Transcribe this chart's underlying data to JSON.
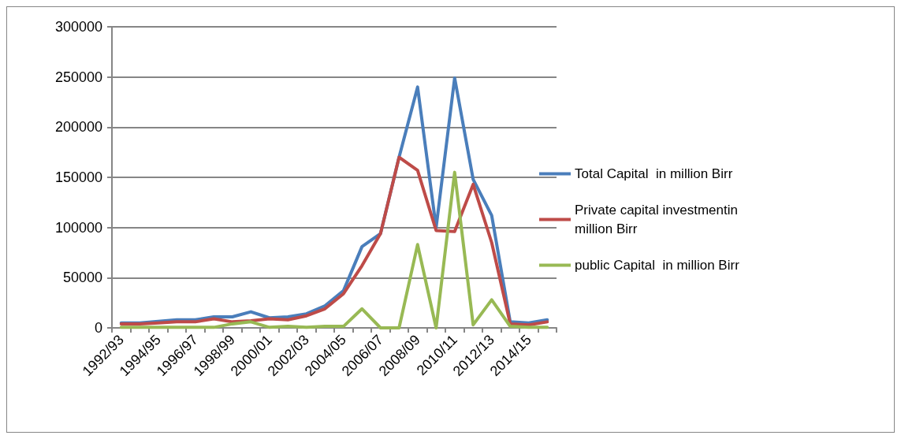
{
  "chart_data": {
    "type": "line",
    "categories": [
      "1992/93",
      null,
      "1994/95",
      null,
      "1996/97",
      null,
      "1998/99",
      null,
      "2000/01",
      null,
      "2002/03",
      null,
      "2004/05",
      null,
      "2006/07",
      null,
      "2008/09",
      null,
      "2010/11",
      null,
      "2012/13",
      null,
      "2014/15",
      null
    ],
    "series": [
      {
        "name": "Total Capital  in million Birr",
        "color": "#4a7ebb",
        "values": [
          5000,
          5000,
          6500,
          8000,
          8000,
          11000,
          11000,
          16000,
          10000,
          11000,
          14000,
          22000,
          37000,
          81000,
          94000,
          170000,
          240000,
          100000,
          249000,
          148000,
          112000,
          6000,
          5000,
          8000
        ]
      },
      {
        "name": "Private capital investmentin million Birr",
        "color": "#be4b48",
        "values": [
          4000,
          4000,
          5000,
          6000,
          6000,
          9000,
          6000,
          7000,
          9000,
          8000,
          12000,
          19000,
          34000,
          62000,
          94000,
          170000,
          157000,
          97000,
          96000,
          143000,
          85000,
          4000,
          3000,
          6000
        ]
      },
      {
        "name": "public Capital  in million Birr",
        "color": "#98b954",
        "values": [
          500,
          500,
          500,
          500,
          500,
          500,
          4000,
          6000,
          500,
          1500,
          500,
          1500,
          1500,
          19000,
          0,
          0,
          83000,
          0,
          155000,
          3000,
          28000,
          1500,
          500,
          500
        ]
      }
    ],
    "ylim": [
      0,
      300000
    ],
    "yticks": [
      0,
      50000,
      100000,
      150000,
      200000,
      250000,
      300000
    ],
    "grid": "y",
    "legend": "right",
    "marker": "none",
    "line_style": "solid"
  }
}
